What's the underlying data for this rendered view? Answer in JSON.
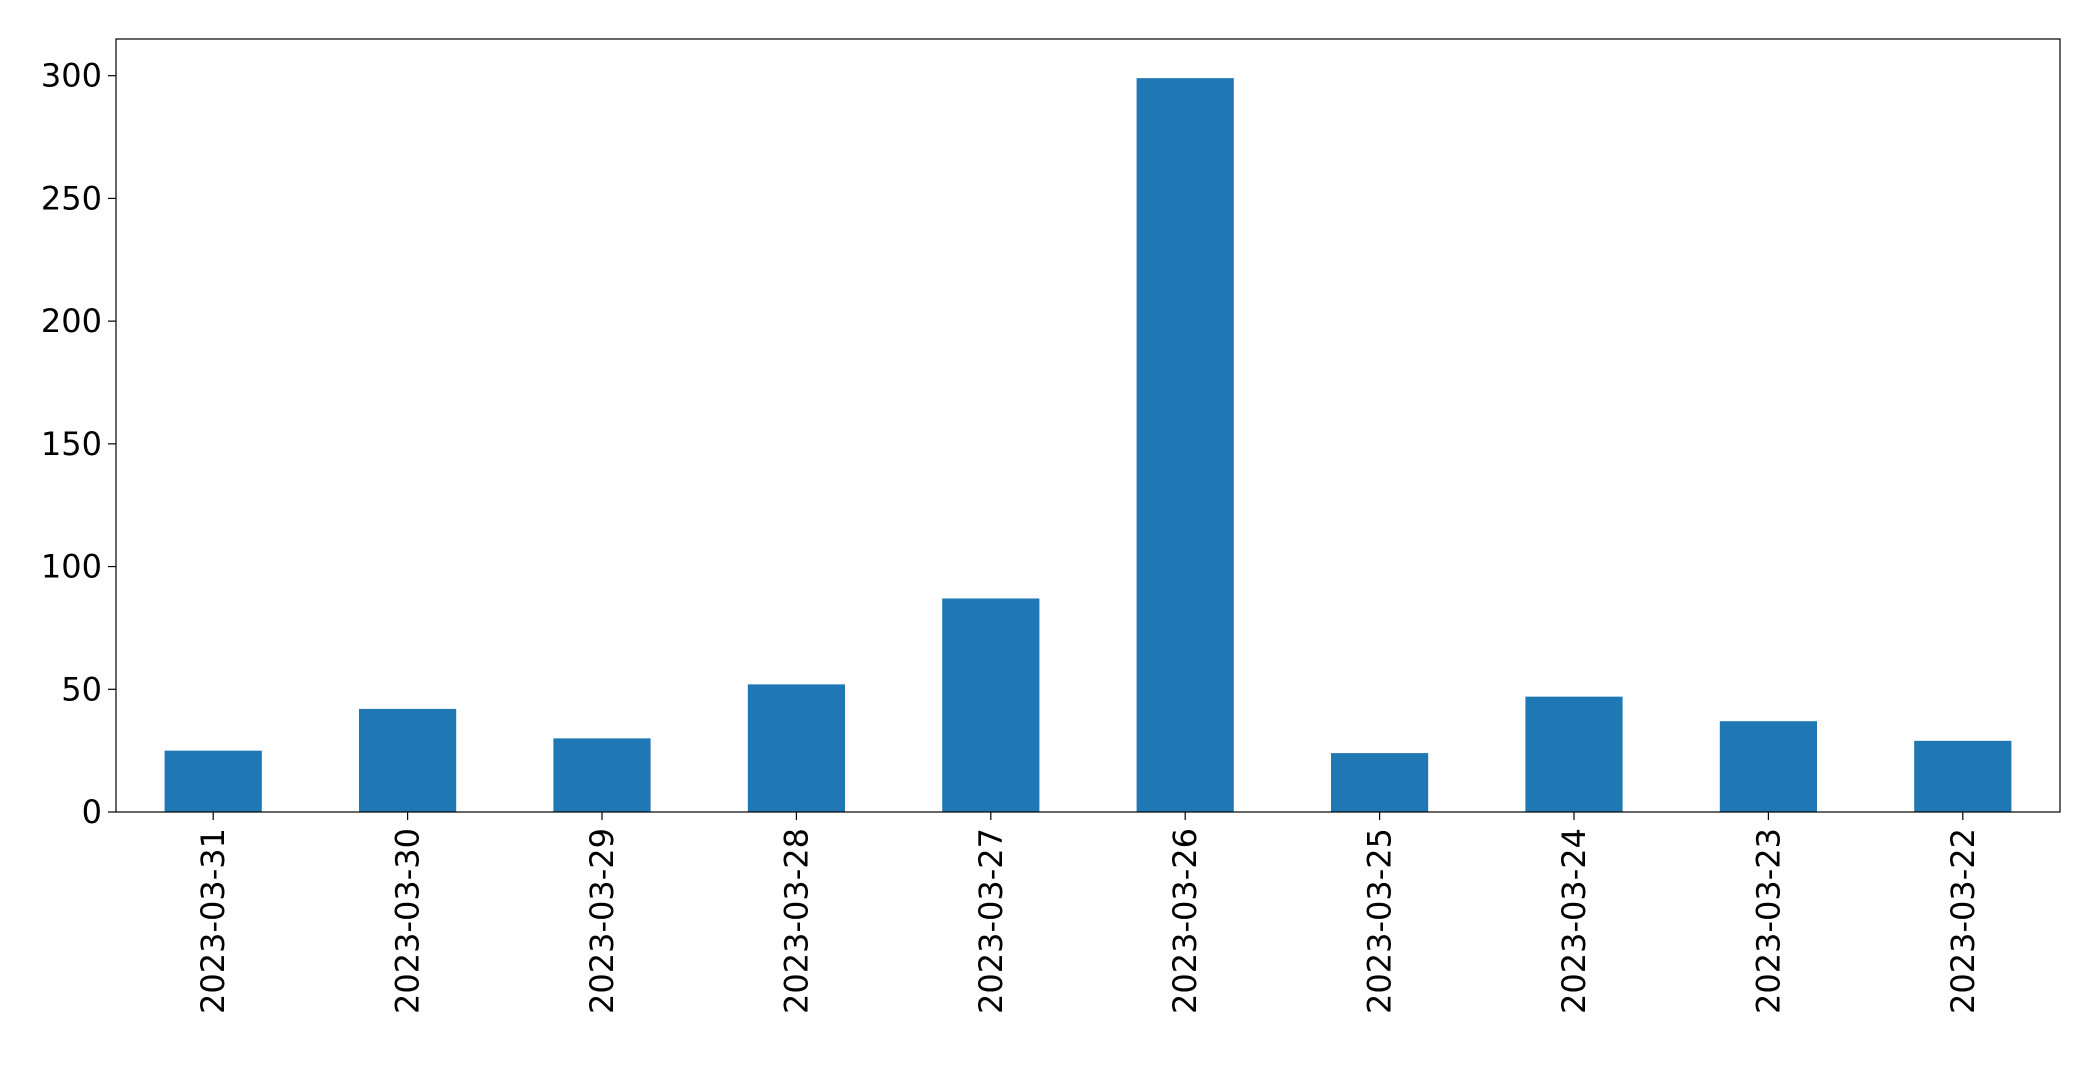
{
  "chart_data": {
    "type": "bar",
    "title": "",
    "xlabel": "",
    "ylabel": "",
    "categories": [
      "2023-03-31",
      "2023-03-30",
      "2023-03-29",
      "2023-03-28",
      "2023-03-27",
      "2023-03-26",
      "2023-03-25",
      "2023-03-24",
      "2023-03-23",
      "2023-03-22"
    ],
    "values": [
      25,
      42,
      30,
      52,
      87,
      299,
      24,
      47,
      37,
      29
    ],
    "ylim": [
      0,
      314.95
    ],
    "yticks": [
      0,
      50,
      100,
      150,
      200,
      250,
      300
    ],
    "xtick_rotation": 90,
    "grid": false,
    "legend": "none",
    "bar_color": "#1f77b4"
  }
}
